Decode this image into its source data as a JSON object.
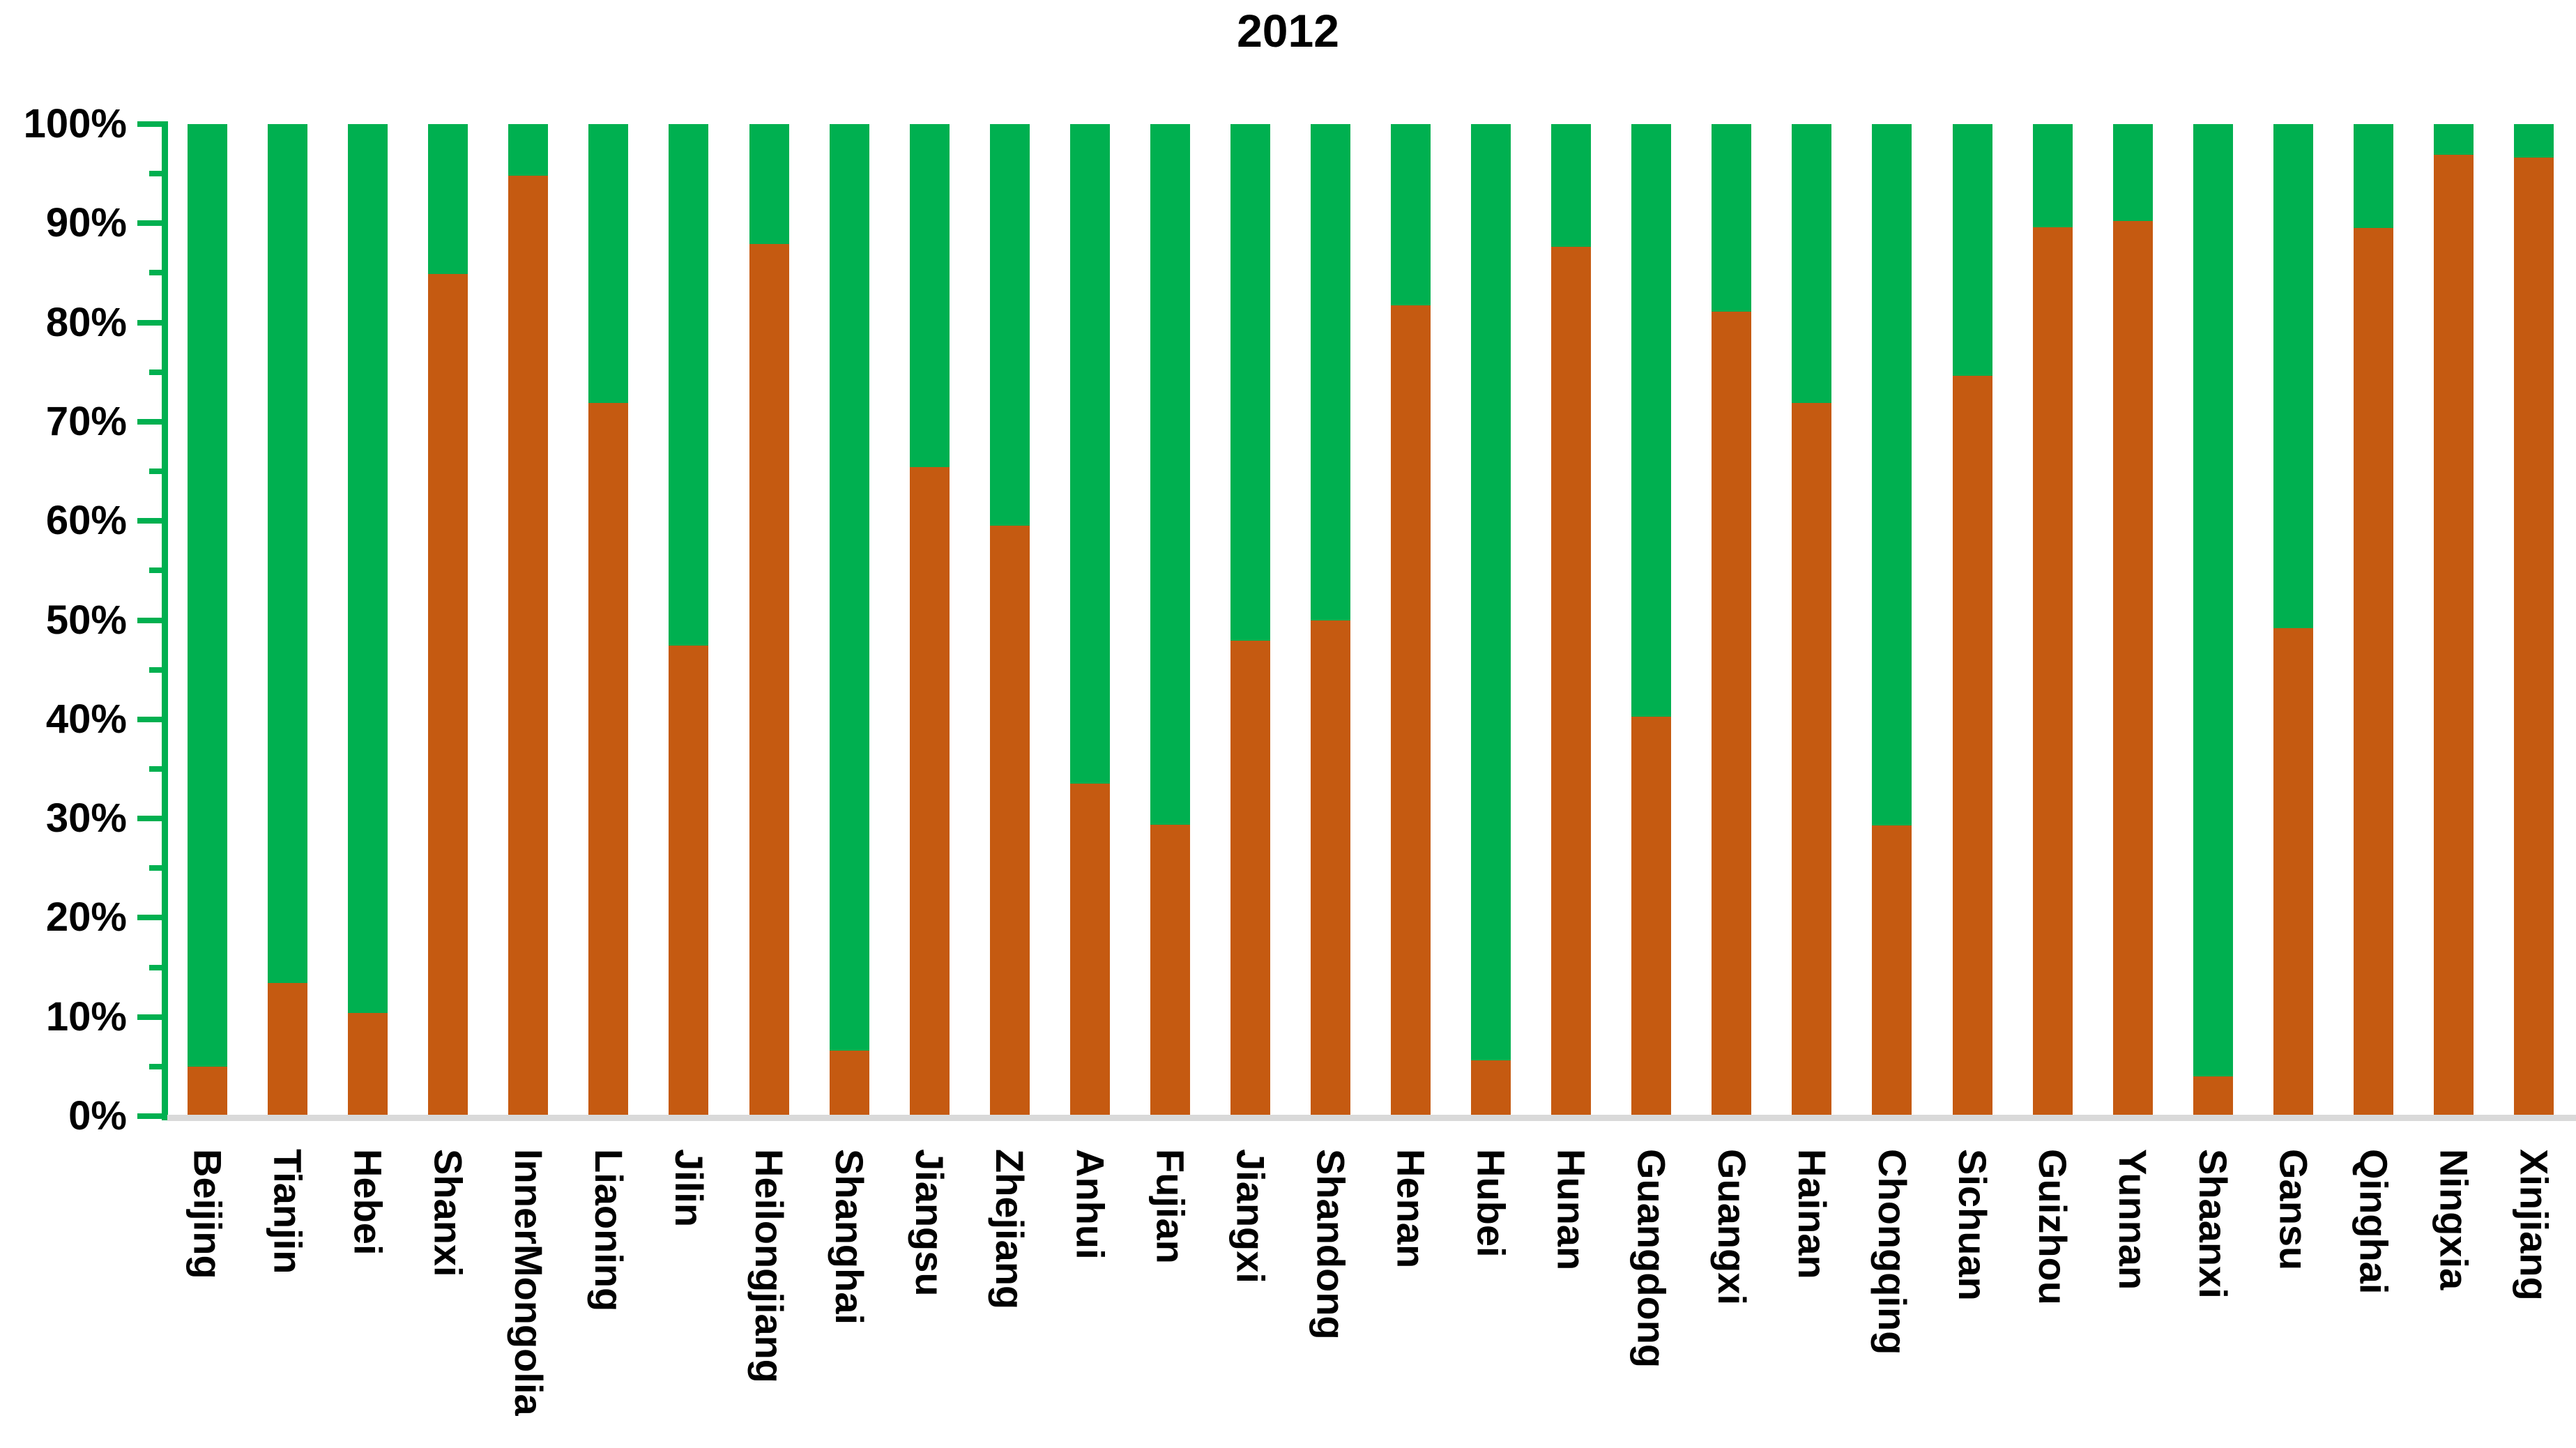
{
  "title": "2012",
  "colors": {
    "orange": "#C55A11",
    "green": "#00B050",
    "axis_line": "#00B050",
    "tick": "#00B050",
    "baseline": "#D9D9D9",
    "text": "#000000",
    "background": "#FFFFFF"
  },
  "y_axis": {
    "min": 0,
    "max": 100,
    "major_step": 10,
    "minor_step": 5,
    "tick_labels": [
      "0%",
      "10%",
      "20%",
      "30%",
      "40%",
      "50%",
      "60%",
      "70%",
      "80%",
      "90%",
      "100%"
    ]
  },
  "chart_data": {
    "type": "bar",
    "stacked": true,
    "percent_stacked": true,
    "title": "2012",
    "xlabel": "",
    "ylabel": "",
    "ylim": [
      0,
      100
    ],
    "grid": false,
    "legend": "none",
    "categories": [
      "Beijing",
      "Tianjin",
      "Hebei",
      "Shanxi",
      "InnerMongolia",
      "Liaoning",
      "Jilin",
      "Heilongjiang",
      "Shanghai",
      "Jiangsu",
      "Zhejiang",
      "Anhui",
      "Fujian",
      "Jiangxi",
      "Shandong",
      "Henan",
      "Hubei",
      "Hunan",
      "Guangdong",
      "Guangxi",
      "Hainan",
      "Chongqing",
      "Sichuan",
      "Guizhou",
      "Yunnan",
      "Shaanxi",
      "Gansu",
      "Qinghai",
      "Ningxia",
      "Xinjiang"
    ],
    "series": [
      {
        "name": "orange",
        "color": "#C55A11",
        "values": [
          5.0,
          13.4,
          10.4,
          84.9,
          94.8,
          71.9,
          47.4,
          87.9,
          6.6,
          65.4,
          59.5,
          33.5,
          29.4,
          47.9,
          50.0,
          81.7,
          5.6,
          87.6,
          40.3,
          81.1,
          71.9,
          29.3,
          74.6,
          89.6,
          90.2,
          4.0,
          49.2,
          89.5,
          96.9,
          96.6
        ]
      },
      {
        "name": "green",
        "color": "#00B050",
        "values": [
          95.0,
          86.6,
          89.6,
          15.1,
          5.2,
          28.1,
          52.6,
          12.1,
          93.4,
          34.6,
          40.5,
          66.5,
          70.6,
          52.1,
          50.0,
          18.3,
          94.4,
          12.4,
          59.7,
          18.9,
          28.1,
          70.7,
          25.4,
          10.4,
          9.8,
          96.0,
          50.8,
          10.5,
          3.1,
          3.4
        ]
      }
    ]
  }
}
